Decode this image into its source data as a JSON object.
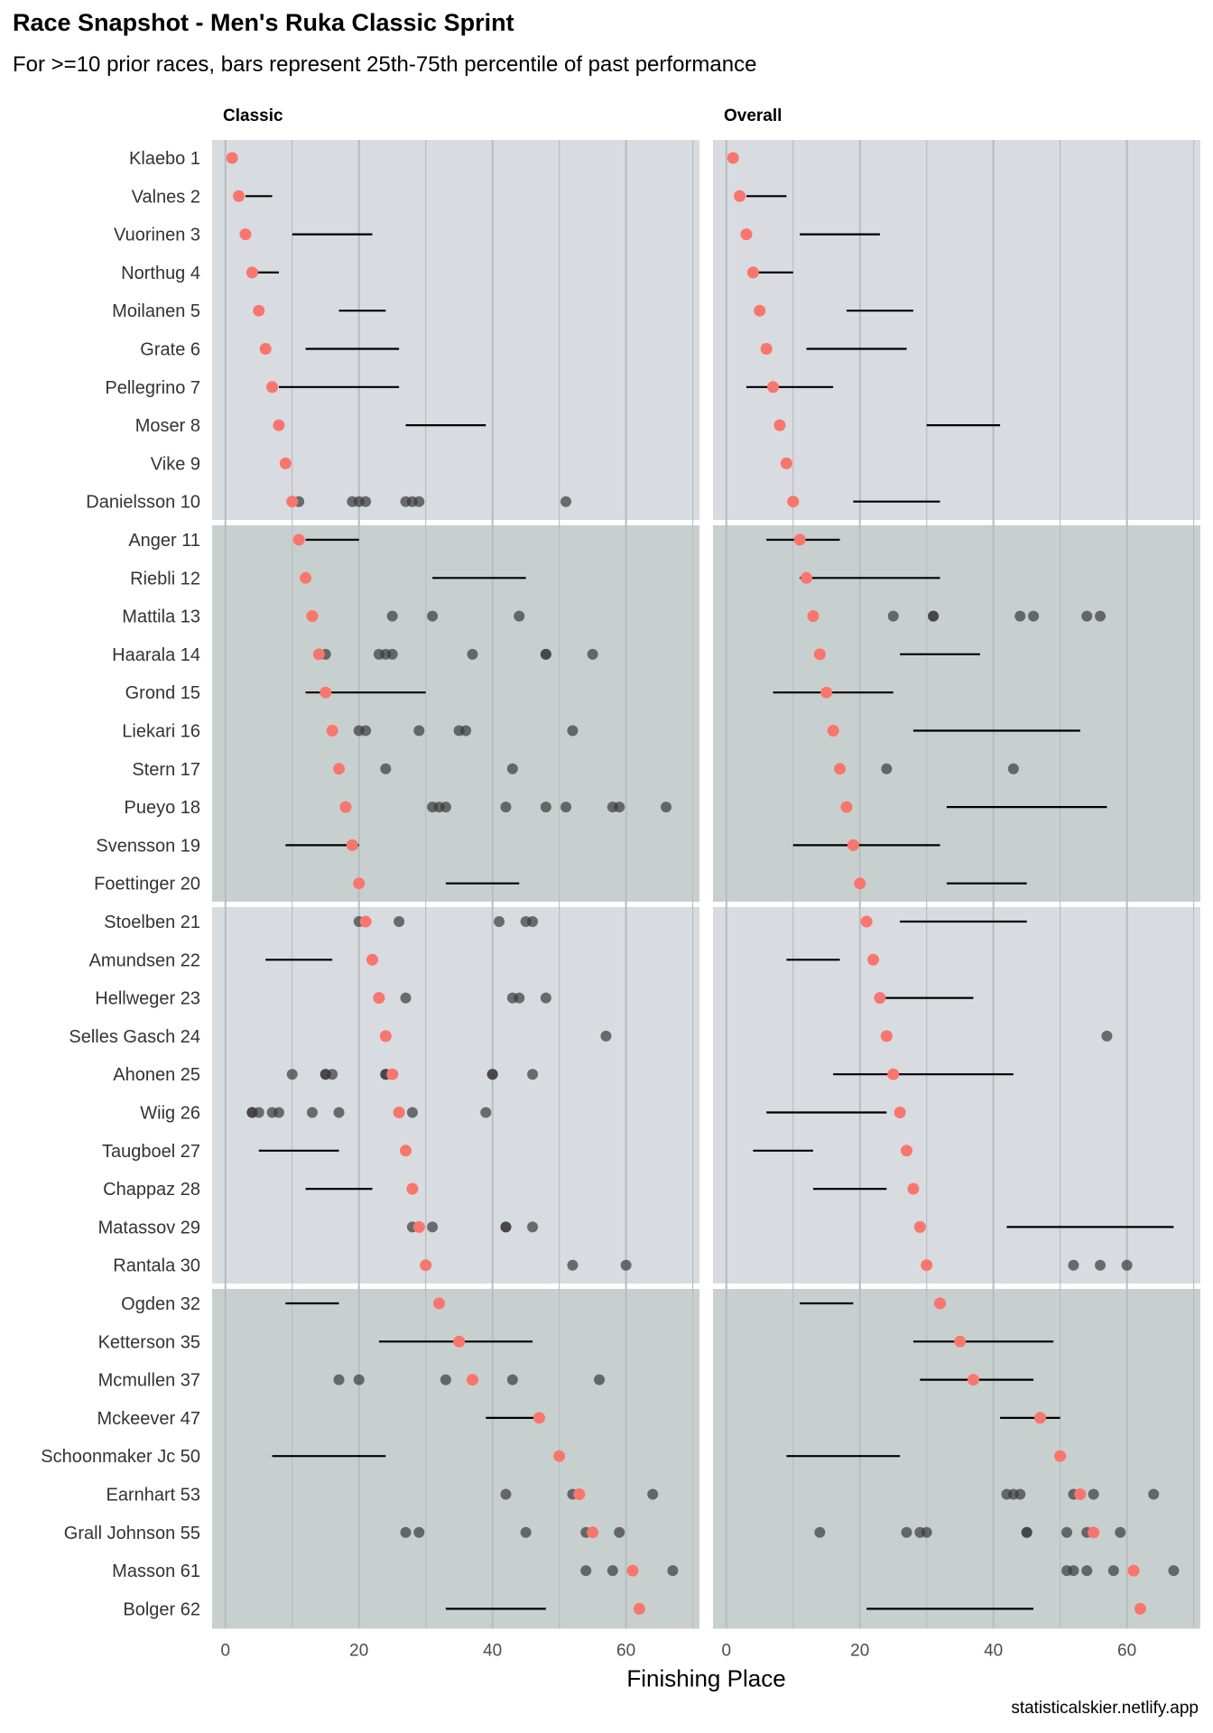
{
  "title": "Race Snapshot -  Men's Ruka Classic Sprint",
  "subtitle": "For >=10 prior races, bars represent 25th-75th percentile of past performance",
  "caption": "statisticalskier.netlify.app",
  "chart_data": {
    "type": "scatter",
    "xlabel": "Finishing Place",
    "xlim": [
      -2,
      71
    ],
    "x_ticks": [
      0,
      20,
      40,
      60
    ],
    "facets": [
      "Classic",
      "Overall"
    ],
    "colors": {
      "current": "#f8766d",
      "past": "#3a3a3a",
      "bar": "#000000",
      "band_light": "#d8dbe0",
      "band_dark": "#c8d0cf",
      "grid": "#b7bcbf"
    },
    "athletes": [
      {
        "label": "Klaebo 1",
        "place": 1,
        "classic": {
          "iqr": null,
          "past": []
        },
        "overall": {
          "iqr": null,
          "past": []
        }
      },
      {
        "label": "Valnes 2",
        "place": 2,
        "classic": {
          "iqr": [
            3,
            7
          ],
          "past": []
        },
        "overall": {
          "iqr": [
            3,
            9
          ],
          "past": []
        }
      },
      {
        "label": "Vuorinen 3",
        "place": 3,
        "classic": {
          "iqr": [
            10,
            22
          ],
          "past": []
        },
        "overall": {
          "iqr": [
            11,
            23
          ],
          "past": []
        }
      },
      {
        "label": "Northug 4",
        "place": 4,
        "classic": {
          "iqr": [
            4,
            8
          ],
          "past": []
        },
        "overall": {
          "iqr": [
            4,
            10
          ],
          "past": []
        }
      },
      {
        "label": "Moilanen 5",
        "place": 5,
        "classic": {
          "iqr": [
            17,
            24
          ],
          "past": []
        },
        "overall": {
          "iqr": [
            18,
            28
          ],
          "past": []
        }
      },
      {
        "label": "Grate 6",
        "place": 6,
        "classic": {
          "iqr": [
            12,
            26
          ],
          "past": []
        },
        "overall": {
          "iqr": [
            12,
            27
          ],
          "past": []
        }
      },
      {
        "label": "Pellegrino 7",
        "place": 7,
        "classic": {
          "iqr": [
            8,
            26
          ],
          "past": []
        },
        "overall": {
          "iqr": [
            3,
            16
          ],
          "past": []
        }
      },
      {
        "label": "Moser 8",
        "place": 8,
        "classic": {
          "iqr": [
            27,
            39
          ],
          "past": []
        },
        "overall": {
          "iqr": [
            30,
            41
          ],
          "past": []
        }
      },
      {
        "label": "Vike 9",
        "place": 9,
        "classic": {
          "iqr": null,
          "past": []
        },
        "overall": {
          "iqr": null,
          "past": []
        }
      },
      {
        "label": "Danielsson 10",
        "place": 10,
        "classic": {
          "iqr": null,
          "past": [
            11,
            19,
            20,
            21,
            27,
            28,
            29,
            51
          ]
        },
        "overall": {
          "iqr": [
            19,
            32
          ],
          "past": []
        }
      },
      {
        "label": "Anger 11",
        "place": 11,
        "classic": {
          "iqr": [
            12,
            20
          ],
          "past": []
        },
        "overall": {
          "iqr": [
            6,
            17
          ],
          "past": []
        }
      },
      {
        "label": "Riebli 12",
        "place": 12,
        "classic": {
          "iqr": [
            31,
            45
          ],
          "past": []
        },
        "overall": {
          "iqr": [
            11,
            32
          ],
          "past": []
        }
      },
      {
        "label": "Mattila 13",
        "place": 13,
        "classic": {
          "iqr": null,
          "past": [
            25,
            31,
            44
          ]
        },
        "overall": {
          "iqr": null,
          "past": [
            25,
            31,
            31,
            44,
            46,
            54,
            56
          ]
        }
      },
      {
        "label": "Haarala 14",
        "place": 14,
        "classic": {
          "iqr": null,
          "past": [
            15,
            23,
            24,
            25,
            37,
            48,
            48,
            55
          ]
        },
        "overall": {
          "iqr": [
            26,
            38
          ],
          "past": []
        }
      },
      {
        "label": "Grond 15",
        "place": 15,
        "classic": {
          "iqr": [
            12,
            30
          ],
          "past": []
        },
        "overall": {
          "iqr": [
            7,
            25
          ],
          "past": []
        }
      },
      {
        "label": "Liekari 16",
        "place": 16,
        "classic": {
          "iqr": null,
          "past": [
            20,
            21,
            29,
            35,
            36,
            52
          ]
        },
        "overall": {
          "iqr": [
            28,
            53
          ],
          "past": []
        }
      },
      {
        "label": "Stern 17",
        "place": 17,
        "classic": {
          "iqr": null,
          "past": [
            24,
            43
          ]
        },
        "overall": {
          "iqr": null,
          "past": [
            24,
            43
          ]
        }
      },
      {
        "label": "Pueyo 18",
        "place": 18,
        "classic": {
          "iqr": null,
          "past": [
            31,
            32,
            33,
            42,
            48,
            51,
            58,
            59,
            66
          ]
        },
        "overall": {
          "iqr": [
            33,
            57
          ],
          "past": []
        }
      },
      {
        "label": "Svensson 19",
        "place": 19,
        "classic": {
          "iqr": [
            9,
            20
          ],
          "past": []
        },
        "overall": {
          "iqr": [
            10,
            32
          ],
          "past": []
        }
      },
      {
        "label": "Foettinger 20",
        "place": 20,
        "classic": {
          "iqr": [
            33,
            44
          ],
          "past": []
        },
        "overall": {
          "iqr": [
            33,
            45
          ],
          "past": []
        }
      },
      {
        "label": "Stoelben 21",
        "place": 21,
        "classic": {
          "iqr": null,
          "past": [
            20,
            26,
            41,
            45,
            46
          ]
        },
        "overall": {
          "iqr": [
            26,
            45
          ],
          "past": []
        }
      },
      {
        "label": "Amundsen 22",
        "place": 22,
        "classic": {
          "iqr": [
            6,
            16
          ],
          "past": []
        },
        "overall": {
          "iqr": [
            9,
            17
          ],
          "past": []
        }
      },
      {
        "label": "Hellweger 23",
        "place": 23,
        "classic": {
          "iqr": null,
          "past": [
            27,
            43,
            44,
            48
          ]
        },
        "overall": {
          "iqr": [
            23,
            37
          ],
          "past": []
        }
      },
      {
        "label": "Selles Gasch 24",
        "place": 24,
        "classic": {
          "iqr": null,
          "past": [
            57
          ]
        },
        "overall": {
          "iqr": null,
          "past": [
            57
          ]
        }
      },
      {
        "label": "Ahonen 25",
        "place": 25,
        "classic": {
          "iqr": null,
          "past": [
            10,
            15,
            15,
            16,
            24,
            24,
            40,
            40,
            46
          ]
        },
        "overall": {
          "iqr": [
            16,
            43
          ],
          "past": []
        }
      },
      {
        "label": "Wiig 26",
        "place": 26,
        "classic": {
          "iqr": null,
          "past": [
            4,
            4,
            5,
            7,
            8,
            13,
            17,
            28,
            39
          ]
        },
        "overall": {
          "iqr": [
            6,
            24
          ],
          "past": []
        }
      },
      {
        "label": "Taugboel 27",
        "place": 27,
        "classic": {
          "iqr": [
            5,
            17
          ],
          "past": []
        },
        "overall": {
          "iqr": [
            4,
            13
          ],
          "past": []
        }
      },
      {
        "label": "Chappaz 28",
        "place": 28,
        "classic": {
          "iqr": [
            12,
            22
          ],
          "past": []
        },
        "overall": {
          "iqr": [
            13,
            24
          ],
          "past": []
        }
      },
      {
        "label": "Matassov 29",
        "place": 29,
        "classic": {
          "iqr": null,
          "past": [
            28,
            31,
            42,
            42,
            46
          ]
        },
        "overall": {
          "iqr": [
            42,
            67
          ],
          "past": []
        }
      },
      {
        "label": "Rantala 30",
        "place": 30,
        "classic": {
          "iqr": null,
          "past": [
            52,
            60
          ]
        },
        "overall": {
          "iqr": null,
          "past": [
            52,
            56,
            60
          ]
        }
      },
      {
        "label": "Ogden 32",
        "place": 32,
        "classic": {
          "iqr": [
            9,
            17
          ],
          "past": []
        },
        "overall": {
          "iqr": [
            11,
            19
          ],
          "past": []
        }
      },
      {
        "label": "Ketterson 35",
        "place": 35,
        "classic": {
          "iqr": [
            23,
            46
          ],
          "past": []
        },
        "overall": {
          "iqr": [
            28,
            49
          ],
          "past": []
        }
      },
      {
        "label": "Mcmullen 37",
        "place": 37,
        "classic": {
          "iqr": null,
          "past": [
            17,
            20,
            33,
            43,
            56
          ]
        },
        "overall": {
          "iqr": [
            29,
            46
          ],
          "past": []
        }
      },
      {
        "label": "Mckeever 47",
        "place": 47,
        "classic": {
          "iqr": [
            39,
            47
          ],
          "past": []
        },
        "overall": {
          "iqr": [
            41,
            50
          ],
          "past": []
        }
      },
      {
        "label": "Schoonmaker Jc 50",
        "place": 50,
        "classic": {
          "iqr": [
            7,
            24
          ],
          "past": []
        },
        "overall": {
          "iqr": [
            9,
            26
          ],
          "past": []
        }
      },
      {
        "label": "Earnhart 53",
        "place": 53,
        "classic": {
          "iqr": null,
          "past": [
            42,
            52,
            64
          ]
        },
        "overall": {
          "iqr": null,
          "past": [
            42,
            43,
            44,
            52,
            53,
            55,
            64
          ]
        }
      },
      {
        "label": "Grall Johnson 55",
        "place": 55,
        "classic": {
          "iqr": null,
          "past": [
            27,
            29,
            45,
            54,
            59
          ]
        },
        "overall": {
          "iqr": null,
          "past": [
            14,
            27,
            29,
            30,
            45,
            45,
            51,
            54,
            59
          ]
        }
      },
      {
        "label": "Masson 61",
        "place": 61,
        "classic": {
          "iqr": null,
          "past": [
            54,
            58,
            67
          ]
        },
        "overall": {
          "iqr": null,
          "past": [
            51,
            52,
            54,
            58,
            67
          ]
        }
      },
      {
        "label": "Bolger 62",
        "place": 62,
        "classic": {
          "iqr": [
            33,
            48
          ],
          "past": []
        },
        "overall": {
          "iqr": [
            21,
            46
          ],
          "past": []
        }
      }
    ]
  }
}
